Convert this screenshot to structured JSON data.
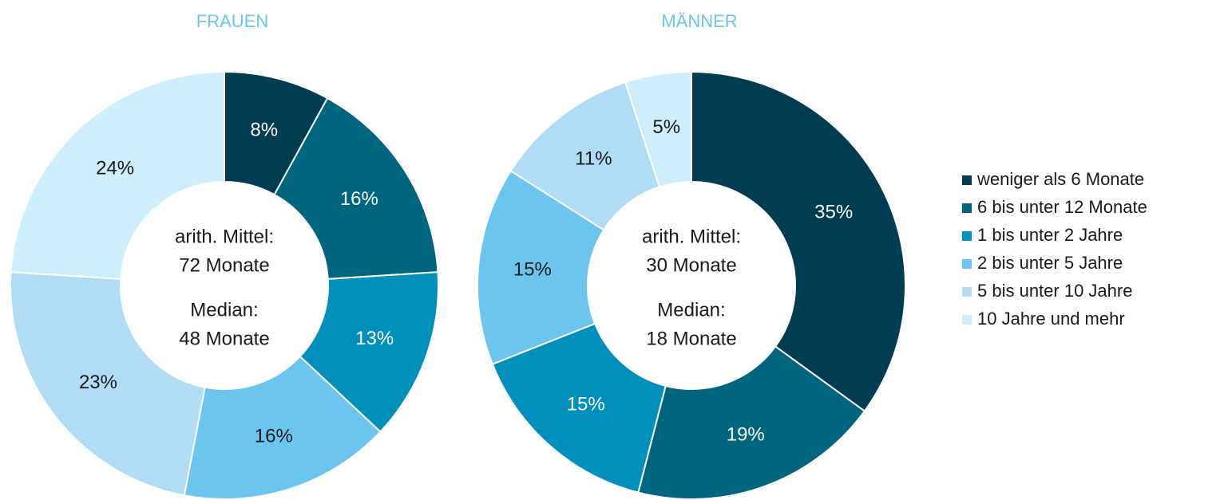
{
  "chart_data": [
    {
      "type": "pie",
      "title": "FRAUEN",
      "categories": [
        "weniger als 6 Monate",
        "6 bis unter 12 Monate",
        "1 bis unter 2 Jahre",
        "2 bis unter 5 Jahre",
        "5 bis unter 10 Jahre",
        "10 Jahre und mehr"
      ],
      "values": [
        8,
        16,
        13,
        16,
        23,
        24
      ],
      "value_labels": [
        "8%",
        "16%",
        "13%",
        "16%",
        "23%",
        "24%"
      ],
      "colors": [
        "#003d52",
        "#006680",
        "#0090bb",
        "#6bc5ef",
        "#b0dcf5",
        "#cdeefa"
      ],
      "annotations": [
        "arith. Mittel:",
        "72 Monate",
        "Median:",
        "48 Monate"
      ]
    },
    {
      "type": "pie",
      "title": "MÄNNER",
      "values": [
        35,
        19,
        15,
        15,
        11,
        5
      ],
      "value_labels": [
        "35%",
        "19%",
        "15%",
        "15%",
        "11%",
        "5%"
      ],
      "colors": [
        "#003d52",
        "#006680",
        "#0090bb",
        "#6bc5ef",
        "#b0dcf5",
        "#cdeefa"
      ],
      "annotations": [
        "arith. Mittel:",
        "30 Monate",
        "Median:",
        "18 Monate"
      ]
    }
  ]
}
